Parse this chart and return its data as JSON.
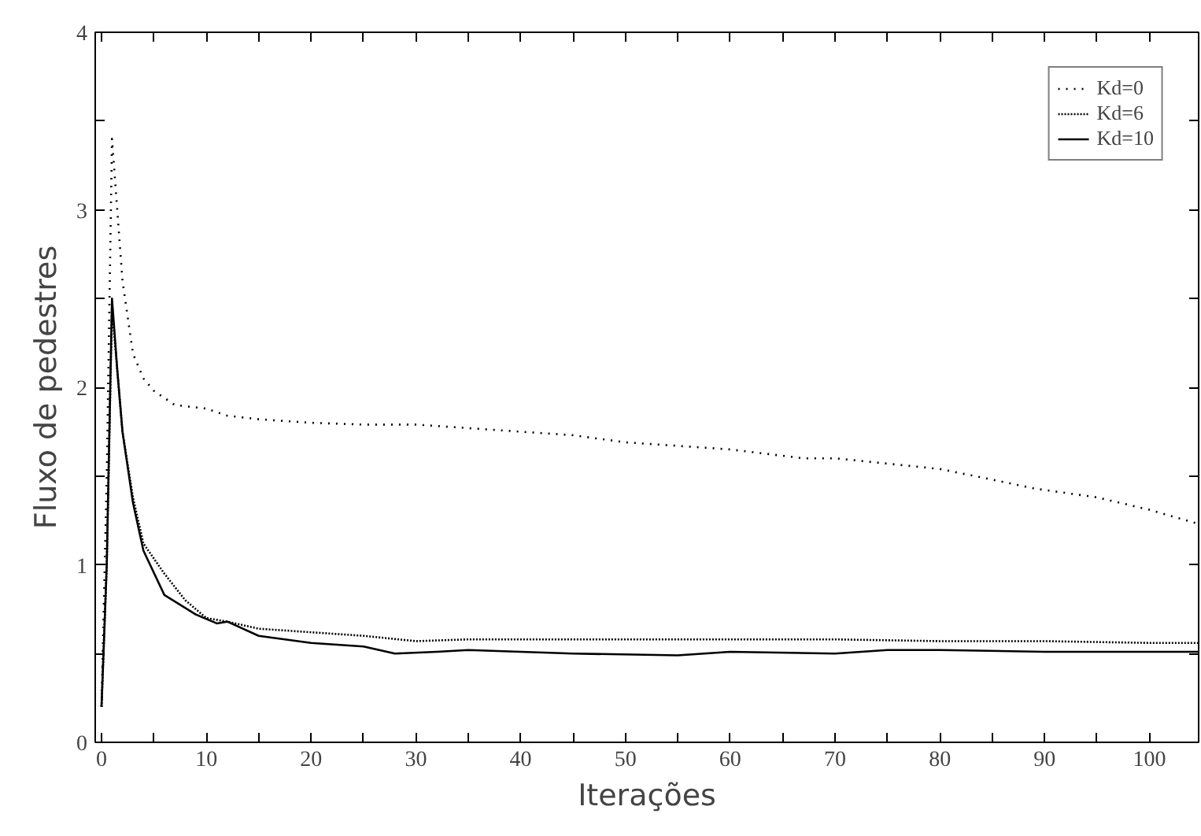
{
  "chart_data": {
    "type": "line",
    "xlabel": "Iterações",
    "ylabel": "Fluxo de pedestres",
    "xlim": [
      -0.6,
      104.7
    ],
    "ylim": [
      0,
      4
    ],
    "xticks": [
      0,
      {
        "value": 5,
        "label": null
      },
      10,
      {
        "value": 15,
        "label": null
      },
      20,
      {
        "value": 25,
        "label": null
      },
      30,
      {
        "value": 35,
        "label": null
      },
      40,
      {
        "value": 45,
        "label": null
      },
      50,
      {
        "value": 55,
        "label": null
      },
      60,
      {
        "value": 65,
        "label": null
      },
      70,
      {
        "value": 75,
        "label": null
      },
      80,
      {
        "value": 85,
        "label": null
      },
      90,
      {
        "value": 95,
        "label": null
      },
      100
    ],
    "yticks": [
      0,
      {
        "value": 0.5,
        "label": null
      },
      1,
      {
        "value": 1.5,
        "label": null
      },
      2,
      {
        "value": 2.5,
        "label": null
      },
      3,
      {
        "value": 3.5,
        "label": null
      },
      4
    ],
    "grid": false,
    "legend": "top right",
    "marker": "none",
    "series": [
      {
        "name": "Kd=0",
        "color": "#000000",
        "line_style": "dotted",
        "x": [
          0,
          0.5,
          1,
          1.5,
          2,
          3,
          4,
          5,
          7,
          10,
          12,
          15,
          20,
          25,
          30,
          35,
          40,
          45,
          50,
          55,
          60,
          67,
          70,
          75,
          80,
          85,
          89,
          95,
          100,
          104.7
        ],
        "values": [
          0.2,
          1.5,
          3.4,
          3.0,
          2.6,
          2.19,
          2.05,
          1.98,
          1.9,
          1.88,
          1.84,
          1.82,
          1.8,
          1.79,
          1.79,
          1.77,
          1.75,
          1.73,
          1.69,
          1.67,
          1.65,
          1.6,
          1.6,
          1.57,
          1.54,
          1.48,
          1.43,
          1.38,
          1.31,
          1.23
        ]
      },
      {
        "name": "Kd=6",
        "color": "#000000",
        "line_style": "dotted",
        "x": [
          0,
          0.5,
          1,
          1.5,
          2,
          3,
          4,
          6,
          8,
          10,
          12,
          15,
          20,
          25,
          30,
          35,
          40,
          50,
          60,
          70,
          80,
          90,
          100,
          104.7
        ],
        "values": [
          0.2,
          1.0,
          2.45,
          2.1,
          1.75,
          1.38,
          1.12,
          0.95,
          0.8,
          0.7,
          0.68,
          0.64,
          0.62,
          0.6,
          0.57,
          0.58,
          0.58,
          0.58,
          0.58,
          0.58,
          0.57,
          0.57,
          0.56,
          0.56
        ]
      },
      {
        "name": "Kd=10",
        "color": "#000000",
        "line_style": "solid",
        "x": [
          0,
          0.5,
          1,
          1.5,
          2,
          3,
          4,
          6,
          9,
          11,
          12,
          15,
          20,
          25,
          28,
          32,
          35,
          45,
          55,
          60,
          70,
          75,
          80,
          90,
          104.7
        ],
        "values": [
          0.2,
          1.0,
          2.5,
          2.1,
          1.75,
          1.35,
          1.08,
          0.83,
          0.72,
          0.67,
          0.68,
          0.6,
          0.56,
          0.54,
          0.5,
          0.51,
          0.52,
          0.5,
          0.49,
          0.51,
          0.5,
          0.52,
          0.52,
          0.51,
          0.51
        ]
      }
    ]
  }
}
